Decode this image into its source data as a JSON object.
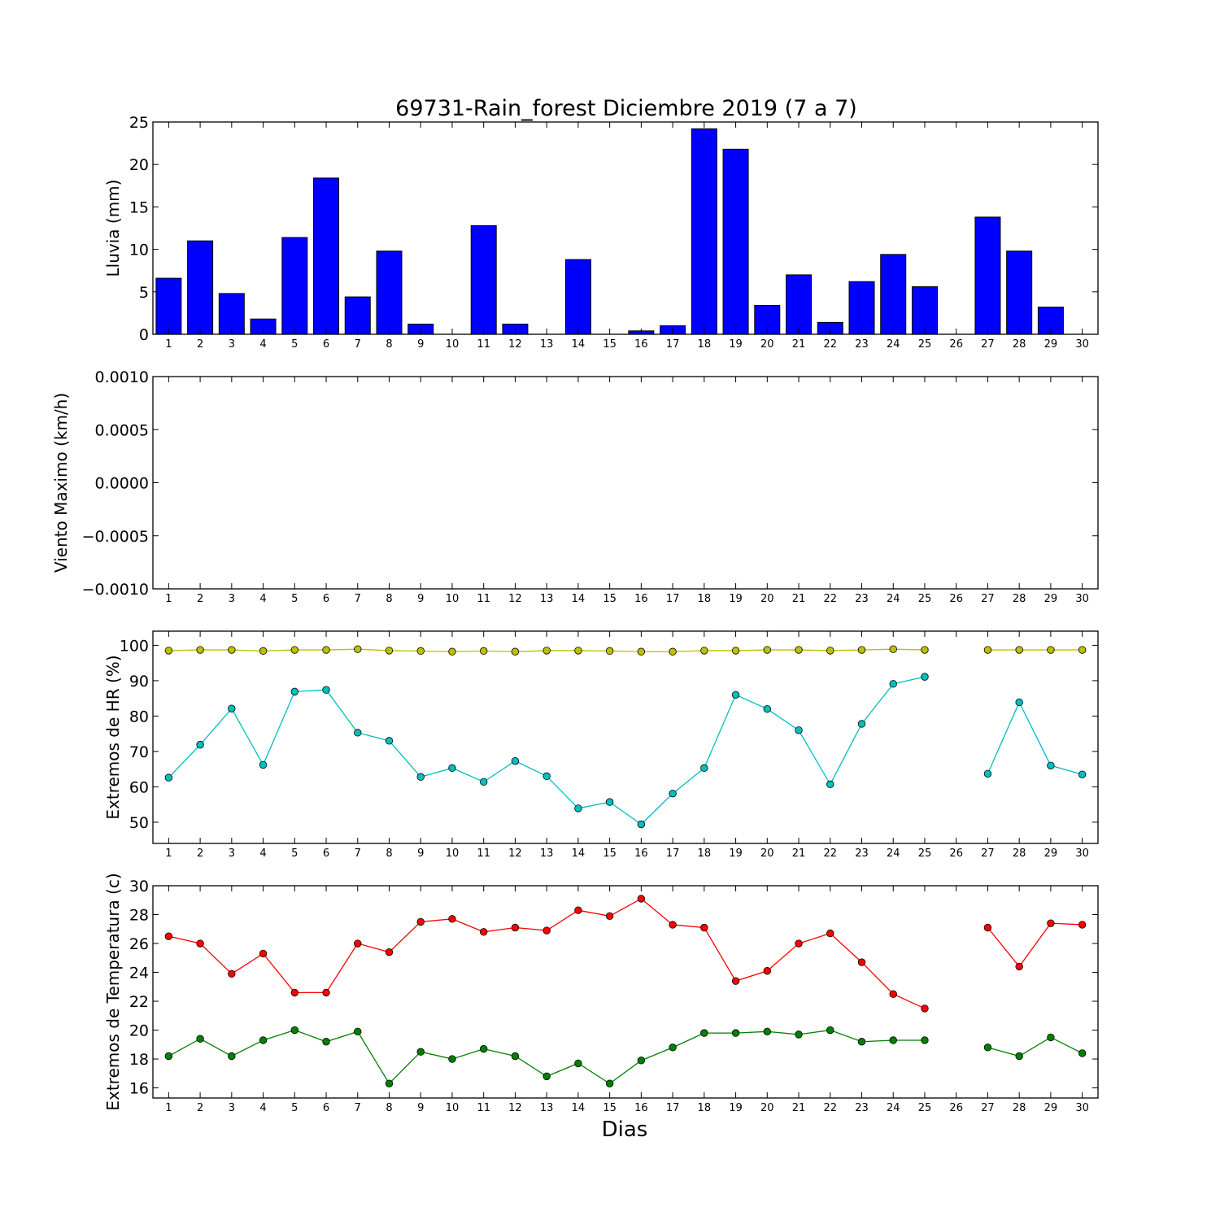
{
  "title": "69731-Rain_forest Diciembre 2019  (7 a 7)",
  "xlabel": "Dias",
  "days": [
    "1",
    "2",
    "3",
    "4",
    "5",
    "6",
    "7",
    "8",
    "9",
    "10",
    "11",
    "12",
    "13",
    "14",
    "15",
    "16",
    "17",
    "18",
    "19",
    "20",
    "21",
    "22",
    "23",
    "24",
    "25",
    "26",
    "27",
    "28",
    "29",
    "30"
  ],
  "colors": {
    "rain": "#0000ff",
    "hr_max": "#bfbf00",
    "hr_min": "#00bfbf",
    "temp_max": "#ff0000",
    "temp_min": "#008000"
  },
  "chart_data": [
    {
      "id": "rain",
      "type": "bar",
      "ylabel": "Lluvia (mm)",
      "ylim": [
        0,
        25
      ],
      "yticks": [
        0,
        5,
        10,
        15,
        20,
        25
      ],
      "ytick_labels": [
        "0",
        "5",
        "10",
        "15",
        "20",
        "25"
      ],
      "categories": [
        1,
        2,
        3,
        4,
        5,
        6,
        7,
        8,
        9,
        10,
        11,
        12,
        13,
        14,
        15,
        16,
        17,
        18,
        19,
        20,
        21,
        22,
        23,
        24,
        25,
        26,
        27,
        28,
        29,
        30
      ],
      "values": [
        6.6,
        11.0,
        4.8,
        1.8,
        11.4,
        18.4,
        4.4,
        9.8,
        1.2,
        0.0,
        12.8,
        1.2,
        0.0,
        8.8,
        0.0,
        0.4,
        1.0,
        24.2,
        21.8,
        3.4,
        7.0,
        1.4,
        6.2,
        9.4,
        5.6,
        0.0,
        13.8,
        9.8,
        3.2,
        0.0
      ]
    },
    {
      "id": "wind",
      "type": "line",
      "ylabel": "Viento Maximo (km/h)",
      "ylim": [
        -0.001,
        0.001
      ],
      "yticks": [
        -0.001,
        -0.0005,
        0.0,
        0.0005,
        0.001
      ],
      "ytick_labels": [
        "−0.0010",
        "−0.0005",
        "0.0000",
        "0.0005",
        "0.0010"
      ],
      "series": []
    },
    {
      "id": "hr",
      "type": "line",
      "ylabel": "Extremos de HR (%)",
      "ylim": [
        44,
        104
      ],
      "yticks": [
        50,
        60,
        70,
        80,
        90,
        100
      ],
      "ytick_labels": [
        "50",
        "60",
        "70",
        "80",
        "90",
        "100"
      ],
      "series": [
        {
          "color_key": "hr_max",
          "values": [
            98.5,
            98.7,
            98.7,
            98.4,
            98.7,
            98.7,
            98.9,
            98.5,
            98.4,
            98.2,
            98.4,
            98.2,
            98.5,
            98.5,
            98.4,
            98.2,
            98.2,
            98.5,
            98.5,
            98.7,
            98.7,
            98.5,
            98.7,
            98.9,
            98.7,
            null,
            98.7,
            98.7,
            98.7,
            98.7
          ]
        },
        {
          "color_key": "hr_min",
          "values": [
            62.6,
            71.9,
            82.1,
            66.2,
            86.9,
            87.4,
            75.3,
            73.0,
            62.8,
            65.3,
            61.4,
            67.3,
            63.0,
            53.9,
            55.7,
            49.4,
            58.1,
            65.3,
            86.0,
            82.0,
            76.0,
            60.7,
            77.8,
            89.1,
            91.1,
            null,
            63.7,
            83.9,
            66.0,
            63.5
          ]
        }
      ]
    },
    {
      "id": "temp",
      "type": "line",
      "ylabel": "Extremos de Temperatura (c)",
      "ylim": [
        15.3,
        30
      ],
      "yticks": [
        16,
        18,
        20,
        22,
        24,
        26,
        28,
        30
      ],
      "ytick_labels": [
        "16",
        "18",
        "20",
        "22",
        "24",
        "26",
        "28",
        "30"
      ],
      "series": [
        {
          "color_key": "temp_max",
          "values": [
            26.5,
            26.0,
            23.9,
            25.3,
            22.6,
            22.6,
            26.0,
            25.4,
            27.5,
            27.7,
            26.8,
            27.1,
            26.9,
            28.3,
            27.9,
            29.1,
            27.3,
            27.1,
            23.4,
            24.1,
            26.0,
            26.7,
            24.7,
            22.5,
            21.5,
            null,
            27.1,
            24.4,
            27.4,
            27.3
          ]
        },
        {
          "color_key": "temp_min",
          "values": [
            18.2,
            19.4,
            18.2,
            19.3,
            20.0,
            19.2,
            19.9,
            16.3,
            18.5,
            18.0,
            18.7,
            18.2,
            16.8,
            17.7,
            16.3,
            17.9,
            18.8,
            19.8,
            19.8,
            19.9,
            19.7,
            20.0,
            19.2,
            19.3,
            19.3,
            null,
            18.8,
            18.2,
            19.5,
            18.4
          ]
        }
      ]
    }
  ]
}
